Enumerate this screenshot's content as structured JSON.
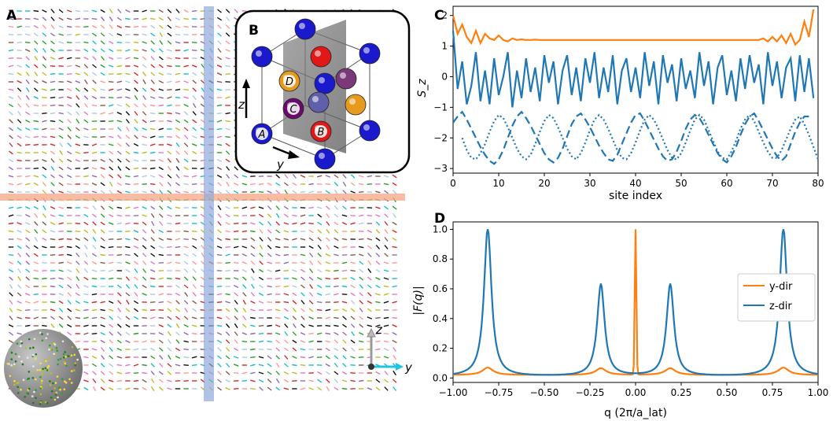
{
  "panels": {
    "a": {
      "letter": "A",
      "axis_z": "z",
      "axis_y": "y"
    },
    "b": {
      "letter": "B",
      "atom_labels": [
        "A",
        "B",
        "C",
        "D"
      ],
      "axis_z": "z",
      "axis_y": "y"
    },
    "c": {
      "letter": "C"
    },
    "d": {
      "letter": "D"
    }
  },
  "chart_data": [
    {
      "id": "C",
      "type": "line",
      "title": "",
      "xlabel": "site index",
      "ylabel": "S_z",
      "xlim": [
        0,
        80
      ],
      "ylim": [
        -3.15,
        2.3
      ],
      "xticks": [
        0,
        10,
        20,
        30,
        40,
        50,
        60,
        70,
        80
      ],
      "yticks": [
        -3,
        -2,
        -1,
        0,
        1,
        2
      ],
      "series": [
        {
          "name": "orange-solid",
          "style": "solid",
          "color": "#ff7f0e",
          "x_start": 0,
          "values": [
            2.0,
            1.4,
            1.7,
            1.3,
            1.1,
            1.5,
            1.1,
            1.4,
            1.25,
            1.2,
            1.35,
            1.2,
            1.15,
            1.25,
            1.2,
            1.22,
            1.2,
            1.2,
            1.21,
            1.2,
            1.2,
            1.2,
            1.2,
            1.2,
            1.2,
            1.2,
            1.2,
            1.2,
            1.2,
            1.2,
            1.2,
            1.2,
            1.2,
            1.2,
            1.2,
            1.2,
            1.2,
            1.2,
            1.2,
            1.2,
            1.2,
            1.2,
            1.2,
            1.2,
            1.2,
            1.2,
            1.2,
            1.2,
            1.2,
            1.2,
            1.2,
            1.2,
            1.2,
            1.2,
            1.2,
            1.2,
            1.2,
            1.2,
            1.2,
            1.2,
            1.2,
            1.2,
            1.2,
            1.2,
            1.2,
            1.2,
            1.2,
            1.2,
            1.25,
            1.15,
            1.3,
            1.15,
            1.35,
            1.1,
            1.4,
            1.05,
            1.2,
            1.8,
            1.3,
            2.2
          ]
        },
        {
          "name": "blue-solid",
          "style": "solid",
          "color": "#1f77b4",
          "x_start": 0,
          "values": [
            1.5,
            -0.4,
            0.5,
            -0.9,
            -0.3,
            0.8,
            -0.8,
            0.2,
            -0.9,
            0.6,
            -0.6,
            0.0,
            0.8,
            -1.0,
            0.2,
            -0.7,
            0.6,
            -0.5,
            0.3,
            -0.8,
            0.7,
            -0.2,
            0.5,
            -0.9,
            0.2,
            0.7,
            -0.6,
            0.3,
            -0.8,
            0.6,
            -0.2,
            0.8,
            -0.7,
            0.3,
            -0.5,
            0.7,
            -0.9,
            0.2,
            0.6,
            -0.5,
            0.3,
            -0.7,
            0.8,
            -0.3,
            0.5,
            -0.9,
            0.7,
            -0.2,
            0.4,
            -0.8,
            0.6,
            -0.4,
            0.2,
            -0.7,
            0.8,
            -0.3,
            0.5,
            -0.9,
            0.3,
            0.7,
            -0.6,
            0.2,
            -0.8,
            0.6,
            -0.4,
            0.7,
            -0.2,
            0.4,
            -0.9,
            0.8,
            -0.3,
            0.5,
            -0.7,
            0.3,
            0.6,
            -0.8,
            0.7,
            -0.5,
            0.6,
            -0.7
          ]
        },
        {
          "name": "blue-dashed",
          "style": "dashed",
          "color": "#1f77b4",
          "x_start": 0,
          "values": [
            -1.5,
            -1.3,
            -1.15,
            -1.4,
            -1.7,
            -2.0,
            -2.3,
            -2.55,
            -2.75,
            -2.85,
            -2.7,
            -2.4,
            -2.0,
            -1.6,
            -1.3,
            -1.15,
            -1.35,
            -1.6,
            -1.9,
            -2.2,
            -2.5,
            -2.7,
            -2.8,
            -2.65,
            -2.35,
            -1.95,
            -1.55,
            -1.3,
            -1.2,
            -1.4,
            -1.65,
            -1.95,
            -2.25,
            -2.5,
            -2.7,
            -2.75,
            -2.55,
            -2.2,
            -1.85,
            -1.5,
            -1.25,
            -1.2,
            -1.45,
            -1.75,
            -2.05,
            -2.35,
            -2.6,
            -2.75,
            -2.7,
            -2.45,
            -2.1,
            -1.7,
            -1.4,
            -1.25,
            -1.35,
            -1.6,
            -1.9,
            -2.2,
            -2.5,
            -2.7,
            -2.8,
            -2.6,
            -2.3,
            -1.9,
            -1.55,
            -1.3,
            -1.2,
            -1.45,
            -1.75,
            -2.05,
            -2.35,
            -2.6,
            -2.75,
            -2.6,
            -2.2,
            -1.8,
            -1.5,
            -1.3,
            -1.3
          ]
        },
        {
          "name": "blue-dotted",
          "style": "dotted",
          "color": "#1f77b4",
          "x_start": 2,
          "values": [
            -2.0,
            -2.4,
            -2.65,
            -2.7,
            -2.5,
            -2.2,
            -1.8,
            -1.45,
            -1.25,
            -1.35,
            -1.65,
            -2.0,
            -2.35,
            -2.6,
            -2.7,
            -2.55,
            -2.2,
            -1.8,
            -1.45,
            -1.25,
            -1.35,
            -1.65,
            -2.0,
            -2.35,
            -2.6,
            -2.7,
            -2.5,
            -2.15,
            -1.75,
            -1.4,
            -1.25,
            -1.4,
            -1.7,
            -2.05,
            -2.4,
            -2.65,
            -2.7,
            -2.5,
            -2.15,
            -1.75,
            -1.4,
            -1.25,
            -1.4,
            -1.7,
            -2.05,
            -2.4,
            -2.65,
            -2.7,
            -2.5,
            -2.15,
            -1.75,
            -1.4,
            -1.25,
            -1.4,
            -1.75,
            -2.1,
            -2.45,
            -2.65,
            -2.7,
            -2.45,
            -2.1,
            -1.7,
            -1.4,
            -1.25,
            -1.45,
            -1.8,
            -2.15,
            -2.45,
            -2.65,
            -2.65,
            -2.4,
            -2.05,
            -1.7,
            -1.4,
            -1.3,
            -1.55,
            -1.9,
            -2.3,
            -2.7
          ]
        }
      ]
    },
    {
      "id": "D",
      "type": "line",
      "title": "",
      "xlabel": "q (2π/a_lat)",
      "ylabel": "|F(q)|",
      "xlim": [
        -1.0,
        1.0
      ],
      "ylim": [
        -0.03,
        1.05
      ],
      "xticks": [
        -1.0,
        -0.75,
        -0.5,
        -0.25,
        0.0,
        0.25,
        0.5,
        0.75,
        1.0
      ],
      "xtick_labels": [
        "−1.00",
        "−0.75",
        "−0.50",
        "−0.25",
        "0.00",
        "0.25",
        "0.50",
        "0.75",
        "1.00"
      ],
      "yticks": [
        0.0,
        0.2,
        0.4,
        0.6,
        0.8,
        1.0
      ],
      "ytick_labels": [
        "0.0",
        "0.2",
        "0.4",
        "0.6",
        "0.8",
        "1.0"
      ],
      "legend": {
        "placement": "center-right",
        "entries": [
          "y-dir",
          "z-dir"
        ]
      },
      "series": [
        {
          "name": "y-dir",
          "color": "#ff7f0e",
          "peaks": [
            {
              "q": 0.0,
              "h": 1.0
            },
            {
              "q": -0.81,
              "h": 0.05
            },
            {
              "q": 0.81,
              "h": 0.05
            },
            {
              "q": -0.19,
              "h": 0.045
            },
            {
              "q": 0.19,
              "h": 0.045
            }
          ],
          "baseline": 0.02
        },
        {
          "name": "z-dir",
          "color": "#1f77b4",
          "peaks": [
            {
              "q": -0.81,
              "h": 1.0
            },
            {
              "q": 0.81,
              "h": 1.0
            },
            {
              "q": -0.19,
              "h": 0.62
            },
            {
              "q": 0.19,
              "h": 0.62
            }
          ],
          "baseline": 0.01
        }
      ]
    }
  ]
}
